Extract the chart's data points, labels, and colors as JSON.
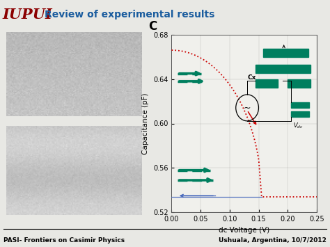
{
  "title_iupui": "IUPUI",
  "title_text": "Review of experimental results",
  "title_iupui_color": "#8B0000",
  "title_text_color": "#1a5c9e",
  "footer_left": "PASI- Frontiers on Casimir Physics",
  "footer_right": "Ushuala, Argentina, 10/7/2012",
  "footer_color": "#000000",
  "plot_label": "C",
  "xlabel": "dc Voltage (V)",
  "ylabel": "Capacitance (pF)",
  "xlim": [
    0,
    0.25
  ],
  "ylim": [
    0.52,
    0.68
  ],
  "yticks": [
    0.52,
    0.56,
    0.6,
    0.64,
    0.68
  ],
  "xticks": [
    0,
    0.05,
    0.1,
    0.15,
    0.2,
    0.25
  ],
  "bg_color": "#e8e8e4",
  "plot_bg": "#f0f0ec",
  "green_color": "#007f5f",
  "red_color": "#cc0000",
  "blue_color": "#4466bb"
}
